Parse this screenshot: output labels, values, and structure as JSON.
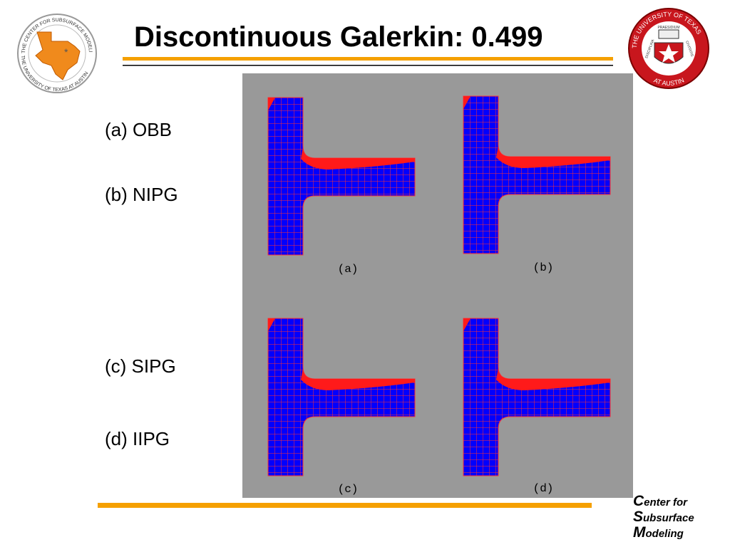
{
  "header": {
    "title": "Discontinuous Galerkin: 0.499"
  },
  "left_logo": {
    "top_text": "THE CENTER FOR SUBSURFACE MODELING",
    "bottom_text": "THE UNIVERSITY OF TEXAS AT AUSTIN"
  },
  "right_logo": {
    "top_text": "THE UNIVERSITY OF TEXAS",
    "bottom_text": "AT AUSTIN",
    "left_text": "DISCIPLINA",
    "center_text": "PRAESIDIUM",
    "right_text": "CIVITATIS"
  },
  "list": [
    "(a) OBB",
    "(b) NIPG",
    "(c) SIPG",
    "(d) IIPG"
  ],
  "figure": {
    "panels": [
      "(a)",
      "(b)",
      "(c)",
      "(d)"
    ]
  },
  "footer": [
    "Center for",
    "Subsurface",
    "Modeling"
  ]
}
